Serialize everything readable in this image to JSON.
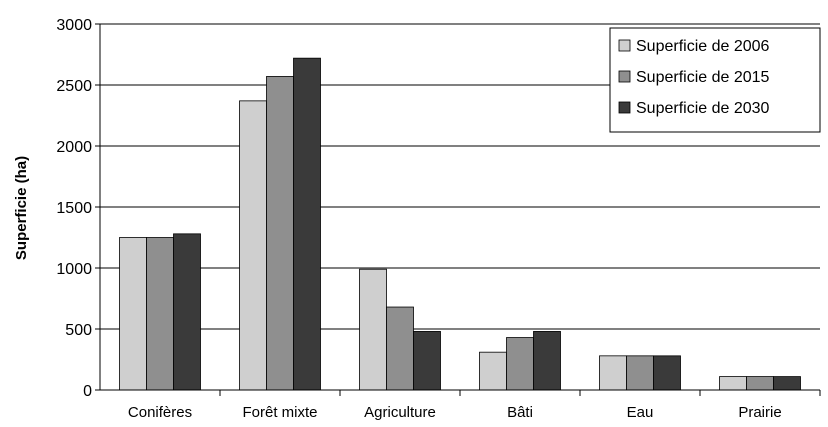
{
  "chart_data": {
    "type": "bar",
    "title": "",
    "xlabel": "",
    "ylabel": "Superficie (ha)",
    "ylim": [
      0,
      3000
    ],
    "yticks": [
      0,
      500,
      1000,
      1500,
      2000,
      2500,
      3000
    ],
    "grid": true,
    "legend_position": "top-right",
    "categories": [
      "Conifères",
      "Forêt mixte",
      "Agriculture",
      "Bâti",
      "Eau",
      "Prairie"
    ],
    "series": [
      {
        "name": "Superficie de 2006",
        "color": "#cfcfcf",
        "values": [
          1250,
          2370,
          990,
          310,
          280,
          110
        ]
      },
      {
        "name": "Superficie de 2015",
        "color": "#8f8f8f",
        "values": [
          1250,
          2570,
          680,
          430,
          280,
          110
        ]
      },
      {
        "name": "Superficie de 2030",
        "color": "#3a3a3a",
        "values": [
          1280,
          2720,
          480,
          480,
          280,
          110
        ]
      }
    ]
  }
}
